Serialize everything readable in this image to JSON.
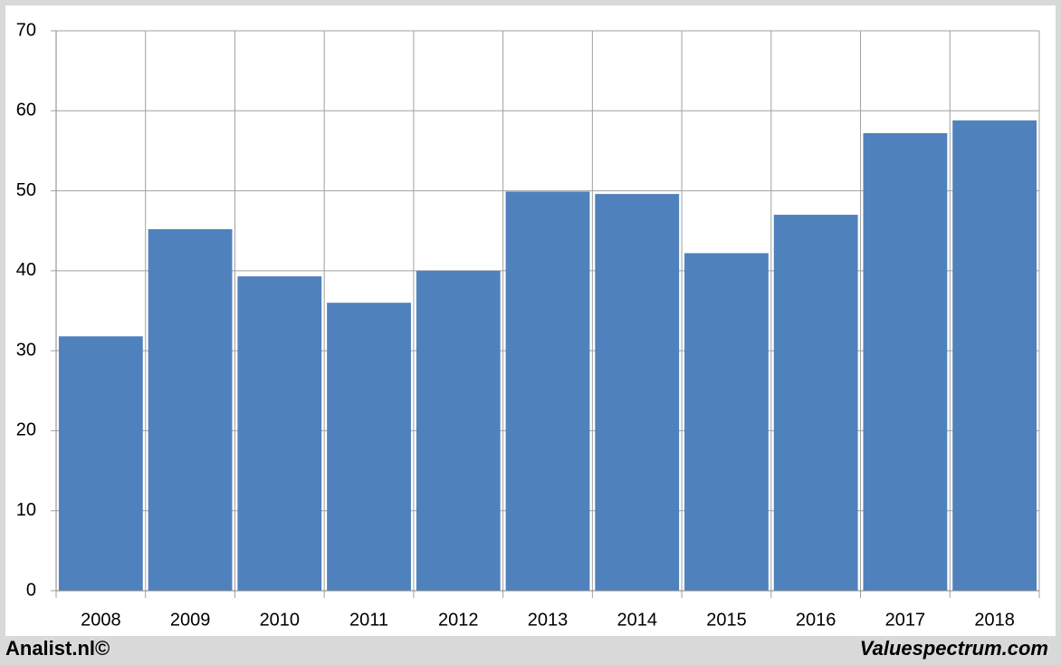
{
  "chart_data": {
    "type": "bar",
    "categories": [
      "2008",
      "2009",
      "2010",
      "2011",
      "2012",
      "2013",
      "2014",
      "2015",
      "2016",
      "2017",
      "2018"
    ],
    "values": [
      31.8,
      45.2,
      39.3,
      36.0,
      40.0,
      49.9,
      49.6,
      42.2,
      47.0,
      57.2,
      58.8
    ],
    "color": "#4f81bd",
    "ylim": [
      0,
      70
    ],
    "yticks": [
      0,
      10,
      20,
      30,
      40,
      50,
      60,
      70
    ],
    "grid": true,
    "footer_left": "Analist.nl©",
    "footer_right": "Valuespectrum.com"
  }
}
